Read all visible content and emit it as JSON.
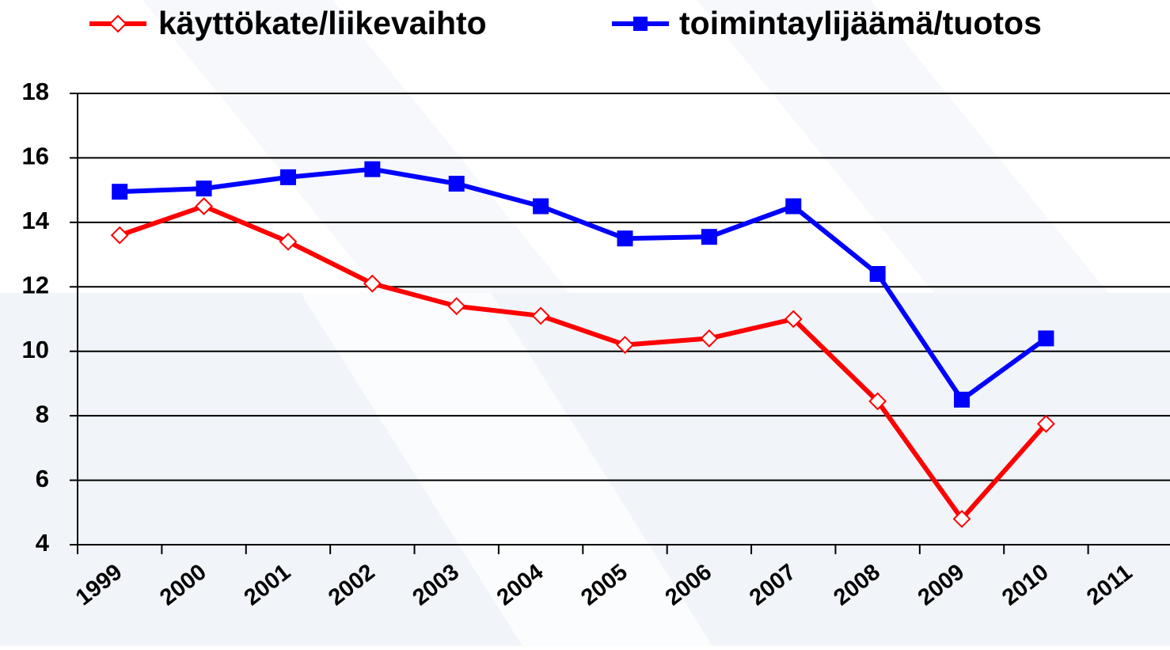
{
  "chart_data": {
    "type": "line",
    "x": [
      1999.5,
      2000.5,
      2001.5,
      2002.5,
      2003.5,
      2004.5,
      2005.5,
      2006.5,
      2007.5,
      2008.5,
      2009.5,
      2010.5
    ],
    "series": [
      {
        "name": "käyttökate/liikevaihto",
        "color": "#ff0000",
        "marker": "diamond",
        "values": [
          13.6,
          14.5,
          13.4,
          12.1,
          11.4,
          11.1,
          10.2,
          10.4,
          11.0,
          8.45,
          4.8,
          7.75
        ]
      },
      {
        "name": "toimintaylijäämä/tuotos",
        "color": "#0000ff",
        "marker": "square",
        "values": [
          14.95,
          15.05,
          15.4,
          15.65,
          15.2,
          14.5,
          13.5,
          13.55,
          14.5,
          12.4,
          8.5,
          10.4
        ]
      }
    ],
    "xlim": [
      1999,
      2012
    ],
    "xticks": [
      1999,
      2000,
      2001,
      2002,
      2003,
      2004,
      2005,
      2006,
      2007,
      2008,
      2009,
      2010,
      2011
    ],
    "ylim": [
      4,
      18
    ],
    "yticks": [
      4,
      6,
      8,
      10,
      12,
      14,
      16,
      18
    ],
    "grid": true
  }
}
